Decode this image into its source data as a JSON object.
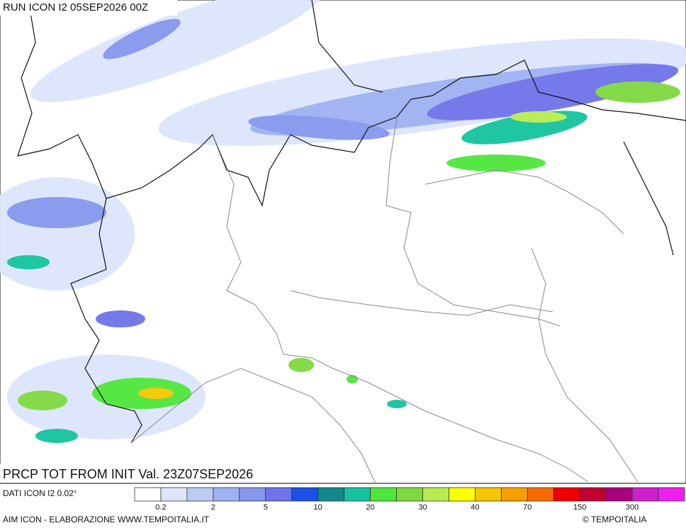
{
  "header": {
    "title": "RUN ICON I2 05SEP2026 00Z"
  },
  "map": {
    "caption": "PRCP TOT FROM INIT Val. 23Z07SEP2026"
  },
  "legend": {
    "source": "DATI ICON I2 0.02°",
    "colors": [
      "#ffffff",
      "#dde5fb",
      "#bccaf6",
      "#9eb1f2",
      "#8597ee",
      "#6f72e8",
      "#1c4fe6",
      "#118a8a",
      "#14c39d",
      "#4fe63a",
      "#7ed93f",
      "#b7ec4f",
      "#ffff00",
      "#f6c700",
      "#f6a000",
      "#f66a00",
      "#ef0000",
      "#c00030",
      "#a9007f",
      "#cf1fcf",
      "#f01ff0"
    ],
    "labels": [
      "0.2",
      "2",
      "5",
      "10",
      "20",
      "30",
      "40",
      "70",
      "150",
      "300"
    ]
  },
  "footer": {
    "credit": "AIM ICON - ELABORAZIONE WWW.TEMPOITALIA.IT",
    "copyright": "© TEMPOITALIA"
  }
}
